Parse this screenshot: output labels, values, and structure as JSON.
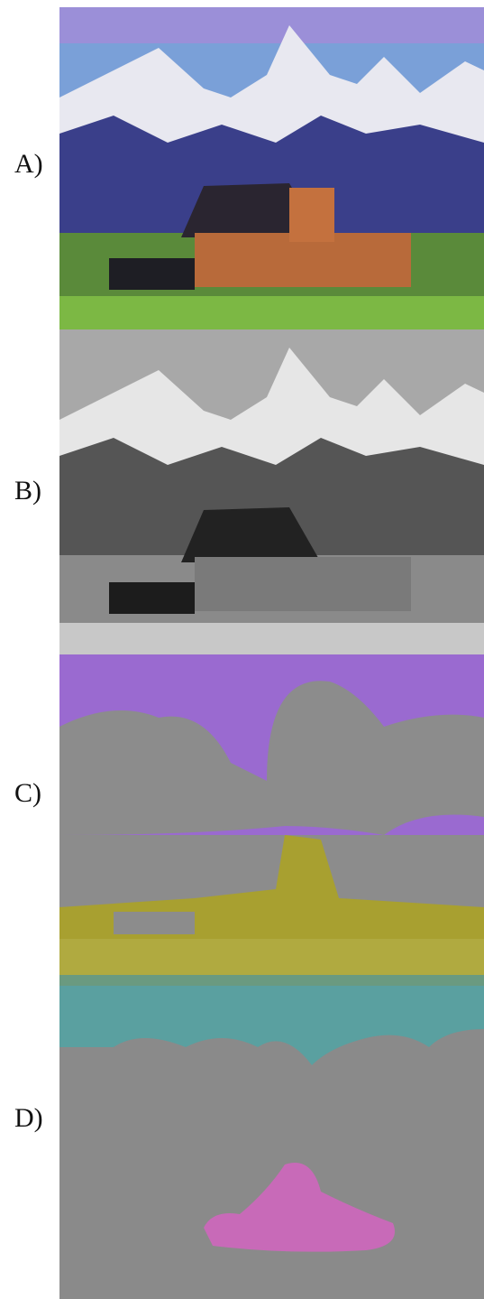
{
  "panels": [
    {
      "label": "A)"
    },
    {
      "label": "B)"
    },
    {
      "label": "C)"
    },
    {
      "label": "D)"
    }
  ]
}
